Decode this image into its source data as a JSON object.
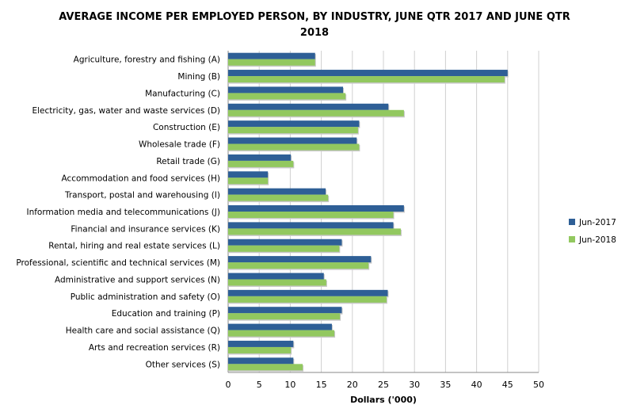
{
  "chart_data": {
    "type": "bar",
    "orientation": "horizontal",
    "title": "AVERAGE INCOME PER EMPLOYED PERSON, BY INDUSTRY, JUNE QTR 2017 AND JUNE QTR 2018",
    "title_lines": [
      "AVERAGE INCOME PER EMPLOYED PERSON, BY INDUSTRY, JUNE QTR 2017 AND JUNE QTR",
      "2018"
    ],
    "xlabel": "Dollars ('000)",
    "ylabel": "",
    "xlim": [
      0,
      50
    ],
    "xticks": [
      0,
      5,
      10,
      15,
      20,
      25,
      30,
      35,
      40,
      45,
      50
    ],
    "grid": true,
    "legend_position": "right",
    "categories": [
      "Agriculture, forestry and fishing (A)",
      "Mining (B)",
      "Manufacturing (C)",
      "Electricity, gas, water and waste services (D)",
      "Construction (E)",
      "Wholesale trade (F)",
      "Retail trade (G)",
      "Accommodation and food services (H)",
      "Transport, postal and warehousing (I)",
      "Information media and telecommunications (J)",
      "Financial and insurance services (K)",
      "Rental, hiring and real estate services (L)",
      "Professional, scientific and technical services (M)",
      "Administrative and support services (N)",
      "Public administration and safety (O)",
      "Education and training (P)",
      "Health care and social assistance (Q)",
      "Arts and recreation services (R)",
      "Other services (S)"
    ],
    "series": [
      {
        "name": "Jun-2017",
        "color": "#2E5F96",
        "values": [
          14.0,
          45.0,
          18.5,
          25.8,
          21.1,
          20.7,
          10.1,
          6.4,
          15.7,
          28.3,
          26.6,
          18.3,
          23.0,
          15.4,
          25.7,
          18.3,
          16.7,
          10.5,
          10.5
        ]
      },
      {
        "name": "Jun-2018",
        "color": "#92C85F",
        "values": [
          14.0,
          44.5,
          18.9,
          28.3,
          20.9,
          21.1,
          10.5,
          6.4,
          16.1,
          26.6,
          27.8,
          17.9,
          22.6,
          15.8,
          25.5,
          18.0,
          17.1,
          10.1,
          12.0
        ]
      }
    ]
  }
}
